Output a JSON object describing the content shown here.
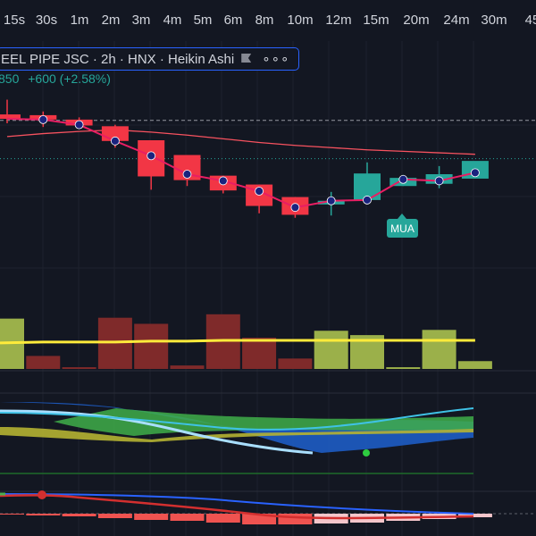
{
  "timeframes": [
    "15s",
    "30s",
    "1m",
    "2m",
    "3m",
    "4m",
    "5m",
    "6m",
    "8m",
    "10m",
    "12m",
    "15m",
    "20m",
    "24m",
    "30m",
    "45"
  ],
  "symbol": {
    "title": "EEL PIPE JSC · 2h · HNX · Heikin Ashi",
    "flag_icon": "flag-icon",
    "more_icon": "more-dots-icon",
    "more_glyph": "∘∘∘"
  },
  "price": {
    "last": "850",
    "change": "+600 (+2.58%)",
    "up_color": "#26a69a",
    "down_color": "#f23645"
  },
  "signal": {
    "label": "MUA",
    "color": "#26a69a"
  },
  "colors": {
    "background": "#131722",
    "candle_up": "#26a69a",
    "candle_down": "#f23645",
    "volume_up": "#9bb04a",
    "volume_down": "#7f2a2a",
    "volume_ma": "#ffeb3b",
    "ema_line": "#e91e63",
    "ma_line": "#f7525f"
  },
  "candles": [
    {
      "o": 37.6,
      "h": 39.6,
      "l": 36.4,
      "c": 37.0
    },
    {
      "o": 37.5,
      "h": 38.0,
      "l": 35.9,
      "c": 36.9
    },
    {
      "o": 36.9,
      "h": 37.2,
      "l": 35.9,
      "c": 36.1
    },
    {
      "o": 36.0,
      "h": 36.2,
      "l": 33.1,
      "c": 34.0
    },
    {
      "o": 34.1,
      "h": 34.1,
      "l": 27.4,
      "c": 29.2
    },
    {
      "o": 32.1,
      "h": 32.1,
      "l": 27.9,
      "c": 28.7
    },
    {
      "o": 29.3,
      "h": 29.3,
      "l": 26.9,
      "c": 27.3
    },
    {
      "o": 28.1,
      "h": 28.1,
      "l": 24.2,
      "c": 25.2
    },
    {
      "o": 26.4,
      "h": 26.4,
      "l": 23.6,
      "c": 24.0
    },
    {
      "o": 25.4,
      "h": 27.1,
      "l": 23.9,
      "c": 25.9
    },
    {
      "o": 26.0,
      "h": 31.1,
      "l": 26.0,
      "c": 29.6
    },
    {
      "o": 27.9,
      "h": 29.4,
      "l": 27.9,
      "c": 29.0
    },
    {
      "o": 28.2,
      "h": 30.6,
      "l": 27.6,
      "c": 29.5
    },
    {
      "o": 28.9,
      "h": 31.1,
      "l": 28.9,
      "c": 31.3
    }
  ],
  "ema": [
    37.0,
    36.9,
    36.2,
    34.0,
    32.0,
    29.5,
    28.6,
    27.2,
    25.0,
    25.9,
    26.0,
    28.8,
    28.6,
    29.7
  ],
  "ma": [
    34.6,
    35.0,
    35.3,
    35.5,
    35.2,
    34.8,
    34.3,
    33.8,
    33.4,
    33.1,
    32.8,
    32.6,
    32.4,
    32.2
  ],
  "levels": {
    "dashed": 36.8,
    "dotted": 31.6
  },
  "y_scale": {
    "min": 18,
    "max": 41
  },
  "volume": {
    "bars": [
      {
        "v": 58,
        "up": true
      },
      {
        "v": 15,
        "up": false
      },
      {
        "v": 2,
        "up": false
      },
      {
        "v": 59,
        "up": false
      },
      {
        "v": 52,
        "up": false
      },
      {
        "v": 4,
        "up": false
      },
      {
        "v": 63,
        "up": false
      },
      {
        "v": 36,
        "up": false
      },
      {
        "v": 12,
        "up": false
      },
      {
        "v": 44,
        "up": true
      },
      {
        "v": 39,
        "up": true
      },
      {
        "v": 2,
        "up": true
      },
      {
        "v": 45,
        "up": true
      },
      {
        "v": 9,
        "up": true
      }
    ],
    "ma": [
      30,
      31,
      31,
      31,
      32,
      32,
      33,
      33,
      33,
      33,
      33,
      33,
      33,
      33
    ],
    "max": 70
  }
}
